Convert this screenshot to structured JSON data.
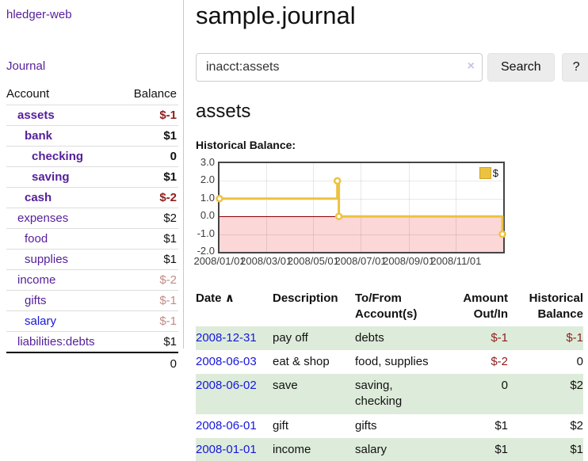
{
  "colors": {
    "accent_purple": "#551f9b",
    "link_blue": "#1616dd",
    "negative_strong": "#8f1d1d",
    "negative_soft": "#c28b85",
    "row_stripe_green": "#ddecda",
    "chart_gold": "#edc240",
    "chart_pink": "#fcd7d7",
    "chart_zero_red": "#8b0000",
    "chart_border": "#454545"
  },
  "app": {
    "title": "hledger-web"
  },
  "sidebar": {
    "journal_link": "Journal",
    "accounts_table": {
      "headers": {
        "account": "Account",
        "balance": "Balance"
      },
      "rows": [
        {
          "name": "assets",
          "indent": 1,
          "bold": true,
          "link_class": "",
          "balance": "$-1",
          "balance_class": "neg-strong"
        },
        {
          "name": "bank",
          "indent": 2,
          "bold": true,
          "link_class": "",
          "balance": "$1",
          "balance_class": ""
        },
        {
          "name": "checking",
          "indent": 3,
          "bold": true,
          "link_class": "",
          "balance": "0",
          "balance_class": ""
        },
        {
          "name": "saving",
          "indent": 3,
          "bold": true,
          "link_class": "",
          "balance": "$1",
          "balance_class": ""
        },
        {
          "name": "cash",
          "indent": 2,
          "bold": true,
          "link_class": "",
          "balance": "$-2",
          "balance_class": "neg-strong"
        },
        {
          "name": "expenses",
          "indent": 1,
          "bold": false,
          "link_class": "",
          "balance": "$2",
          "balance_class": ""
        },
        {
          "name": "food",
          "indent": 2,
          "bold": false,
          "link_class": "",
          "balance": "$1",
          "balance_class": ""
        },
        {
          "name": "supplies",
          "indent": 2,
          "bold": false,
          "link_class": "",
          "balance": "$1",
          "balance_class": ""
        },
        {
          "name": "income",
          "indent": 1,
          "bold": false,
          "link_class": "",
          "balance": "$-2",
          "balance_class": "neg-soft"
        },
        {
          "name": "gifts",
          "indent": 2,
          "bold": false,
          "link_class": "",
          "balance": "$-1",
          "balance_class": "neg-soft"
        },
        {
          "name": "salary",
          "indent": 2,
          "bold": false,
          "link_class": "blue",
          "balance": "$-1",
          "balance_class": "neg-soft"
        },
        {
          "name": "liabilities:debts",
          "indent": 1,
          "bold": false,
          "link_class": "",
          "balance": "$1",
          "balance_class": ""
        }
      ],
      "total": "0"
    }
  },
  "main": {
    "title": "sample.journal",
    "search": {
      "value": "inacct:assets",
      "clear_icon": "×",
      "search_button": "Search",
      "help_button": "?"
    },
    "account_heading": "assets",
    "chart_label": "Historical Balance:"
  },
  "chart_data": {
    "type": "line",
    "subtype": "step",
    "title": "Historical Balance:",
    "x_range": [
      "2008-01-01",
      "2008-12-31"
    ],
    "ylim": [
      -2,
      3
    ],
    "y_ticks": [
      "3.0",
      "2.0",
      "1.0",
      "0.0",
      "-1.0",
      "-2.0"
    ],
    "x_ticks": [
      {
        "date": "2008-01-01",
        "label": "2008/01/01"
      },
      {
        "date": "2008-03-01",
        "label": "2008/03/01"
      },
      {
        "date": "2008-05-01",
        "label": "2008/05/01"
      },
      {
        "date": "2008-07-01",
        "label": "2008/07/01"
      },
      {
        "date": "2008-09-01",
        "label": "2008/09/01"
      },
      {
        "date": "2008-11-01",
        "label": "2008/11/01"
      }
    ],
    "series": [
      {
        "name": "$",
        "color": "#edc240",
        "points": [
          {
            "date": "2008-01-01",
            "value": 1
          },
          {
            "date": "2008-06-01",
            "value": 2
          },
          {
            "date": "2008-06-03",
            "value": 0
          },
          {
            "date": "2008-12-31",
            "value": -1
          }
        ]
      }
    ],
    "legend": {
      "position": "top-right",
      "label": "$"
    },
    "grid": true,
    "zero_line": true,
    "negative_region_shaded": true
  },
  "register": {
    "headers": {
      "date": "Date",
      "sort_icon": "∧",
      "description": "Description",
      "accounts": "To/From Account(s)",
      "amount": "Amount Out/In",
      "balance": "Historical Balance"
    },
    "rows": [
      {
        "date": "2008-12-31",
        "description": "pay off",
        "accounts": "debts",
        "amount": "$-1",
        "amount_class": "neg-strong",
        "balance": "$-1",
        "balance_class": "neg-strong"
      },
      {
        "date": "2008-06-03",
        "description": "eat & shop",
        "accounts": "food, supplies",
        "amount": "$-2",
        "amount_class": "neg-strong",
        "balance": "0",
        "balance_class": ""
      },
      {
        "date": "2008-06-02",
        "description": "save",
        "accounts": "saving, checking",
        "amount": "0",
        "amount_class": "",
        "balance": "$2",
        "balance_class": ""
      },
      {
        "date": "2008-06-01",
        "description": "gift",
        "accounts": "gifts",
        "amount": "$1",
        "amount_class": "",
        "balance": "$2",
        "balance_class": ""
      },
      {
        "date": "2008-01-01",
        "description": "income",
        "accounts": "salary",
        "amount": "$1",
        "amount_class": "",
        "balance": "$1",
        "balance_class": ""
      }
    ]
  }
}
